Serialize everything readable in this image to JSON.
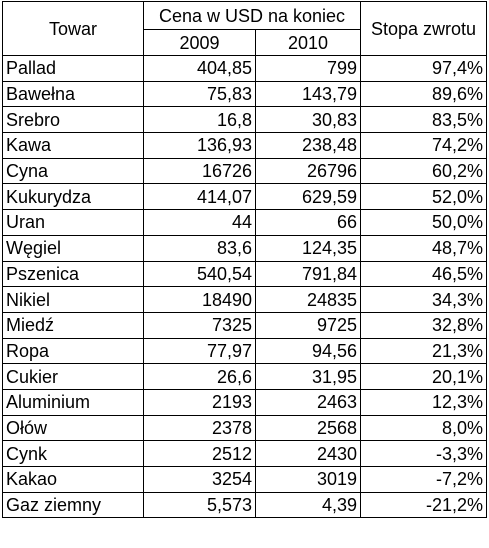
{
  "table": {
    "headers": {
      "commodity": "Towar",
      "price_group": "Cena w USD na koniec",
      "year_2009": "2009",
      "year_2010": "2010",
      "return": "Stopa zwrotu"
    },
    "rows": [
      {
        "name": "Pallad",
        "p2009": "404,85",
        "p2010": "799",
        "ret": "97,4%"
      },
      {
        "name": "Bawełna",
        "p2009": "75,83",
        "p2010": "143,79",
        "ret": "89,6%"
      },
      {
        "name": "Srebro",
        "p2009": "16,8",
        "p2010": "30,83",
        "ret": "83,5%"
      },
      {
        "name": "Kawa",
        "p2009": "136,93",
        "p2010": "238,48",
        "ret": "74,2%"
      },
      {
        "name": "Cyna",
        "p2009": "16726",
        "p2010": "26796",
        "ret": "60,2%"
      },
      {
        "name": "Kukurydza",
        "p2009": "414,07",
        "p2010": "629,59",
        "ret": "52,0%"
      },
      {
        "name": "Uran",
        "p2009": "44",
        "p2010": "66",
        "ret": "50,0%"
      },
      {
        "name": "Węgiel",
        "p2009": "83,6",
        "p2010": "124,35",
        "ret": "48,7%"
      },
      {
        "name": "Pszenica",
        "p2009": "540,54",
        "p2010": "791,84",
        "ret": "46,5%"
      },
      {
        "name": "Nikiel",
        "p2009": "18490",
        "p2010": "24835",
        "ret": "34,3%"
      },
      {
        "name": "Miedź",
        "p2009": "7325",
        "p2010": "9725",
        "ret": "32,8%"
      },
      {
        "name": "Ropa",
        "p2009": "77,97",
        "p2010": "94,56",
        "ret": "21,3%"
      },
      {
        "name": "Cukier",
        "p2009": "26,6",
        "p2010": "31,95",
        "ret": "20,1%"
      },
      {
        "name": "Aluminium",
        "p2009": "2193",
        "p2010": "2463",
        "ret": "12,3%"
      },
      {
        "name": "Ołów",
        "p2009": "2378",
        "p2010": "2568",
        "ret": "8,0%"
      },
      {
        "name": "Cynk",
        "p2009": "2512",
        "p2010": "2430",
        "ret": "-3,3%"
      },
      {
        "name": "Kakao",
        "p2009": "3254",
        "p2010": "3019",
        "ret": "-7,2%"
      },
      {
        "name": "Gaz ziemny",
        "p2009": "5,573",
        "p2010": "4,39",
        "ret": "-21,2%"
      }
    ]
  }
}
